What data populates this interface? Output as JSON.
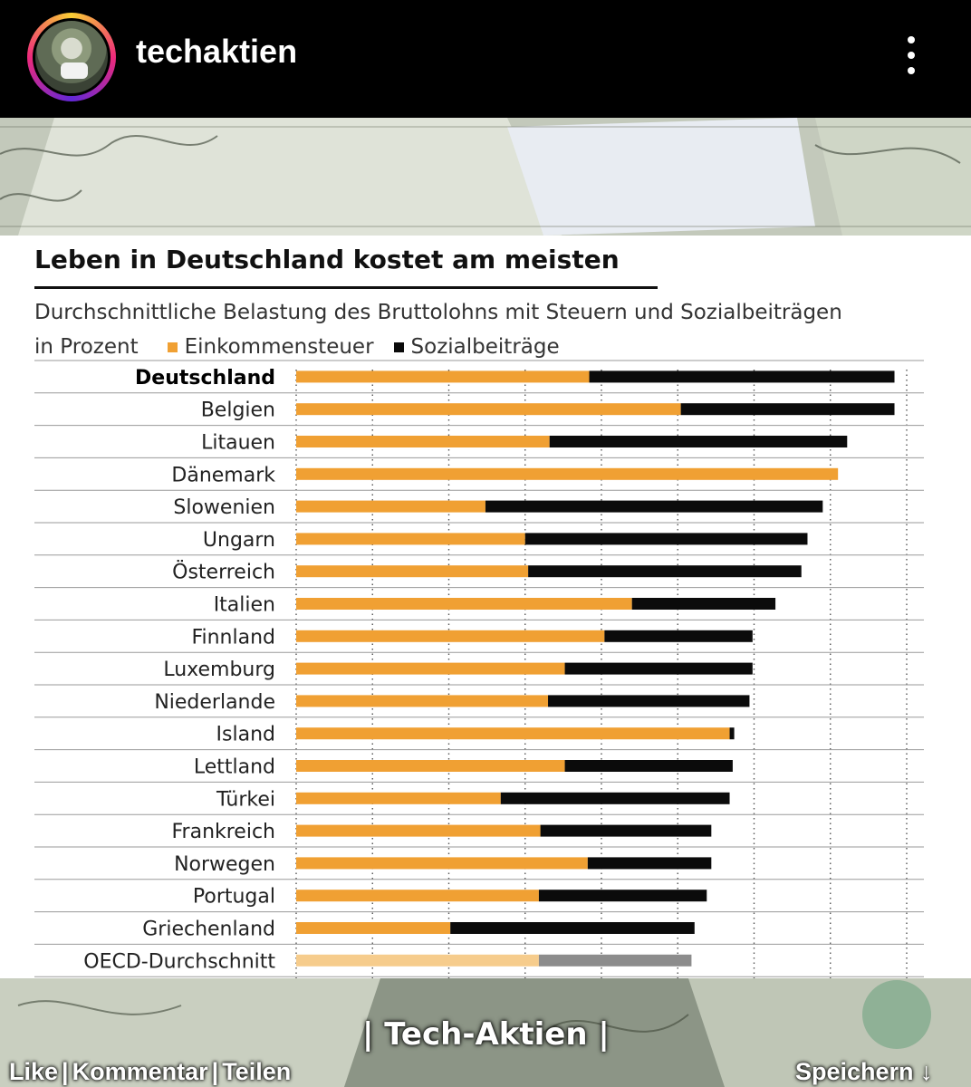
{
  "header": {
    "username": "techaktien",
    "avatar_icon": "avatar-icon",
    "more_icon": "more-vertical-icon"
  },
  "caption": "| Tech-Aktien |",
  "actions": {
    "like": "Like",
    "comment": "Kommentar",
    "share": "Teilen",
    "separator": "|",
    "save": "Speichern ↓"
  },
  "colors": {
    "income_tax": "#f0a033",
    "social": "#0b0b0b",
    "oecd_income_tax": "#f6cc8c",
    "oecd_social": "#8c8c8c"
  },
  "chart_data": {
    "type": "bar",
    "orientation": "horizontal",
    "stacked": true,
    "title": "Leben in Deutschland kostet am meisten",
    "subtitle": "Durchschnittliche Belastung des Bruttolohns mit Steuern und Sozialbeiträgen",
    "unit_label": "in Prozent",
    "categories": [
      "Deutschland",
      "Belgien",
      "Litauen",
      "Dänemark",
      "Slowenien",
      "Ungarn",
      "Österreich",
      "Italien",
      "Finnland",
      "Luxemburg",
      "Niederlande",
      "Island",
      "Lettland",
      "Türkei",
      "Frankreich",
      "Norwegen",
      "Portugal",
      "Griechenland",
      "OECD-Durchschnitt"
    ],
    "highlight": "Deutschland",
    "series": [
      {
        "name": "Einkommensteuer",
        "values": [
          19.2,
          25.2,
          16.6,
          35.5,
          12.4,
          15.0,
          15.2,
          22.0,
          20.2,
          17.6,
          16.5,
          28.4,
          17.6,
          13.4,
          16.0,
          19.1,
          15.9,
          10.1,
          15.9
        ]
      },
      {
        "name": "Sozialbeiträge",
        "values": [
          20.0,
          14.0,
          19.5,
          0.0,
          22.1,
          18.5,
          17.9,
          9.4,
          9.7,
          12.3,
          13.2,
          0.3,
          11.0,
          15.0,
          11.2,
          8.1,
          11.0,
          16.0,
          10.0
        ]
      }
    ],
    "xlim": [
      0,
      40
    ],
    "grid": true,
    "legend_position": "top-left"
  }
}
